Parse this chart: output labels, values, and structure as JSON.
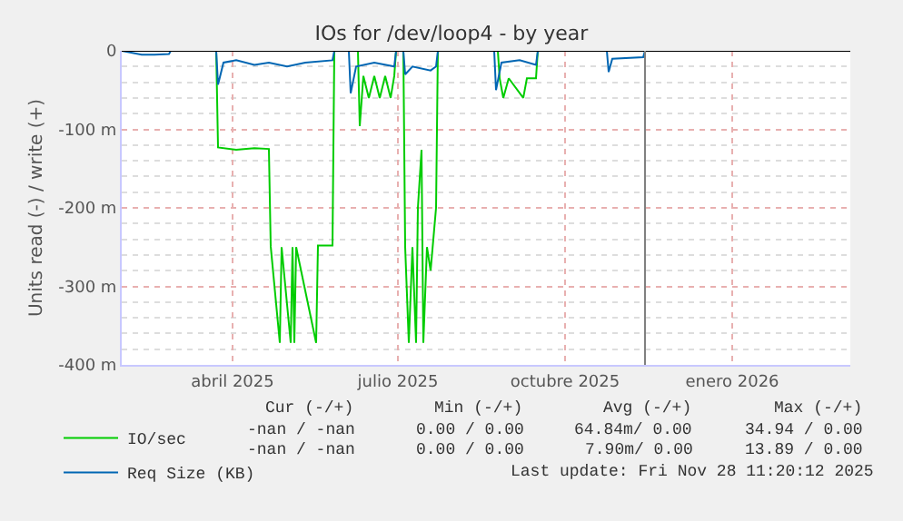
{
  "chart_data": {
    "type": "line",
    "title": "IOs for /dev/loop4 - by year",
    "ylabel": "Units read (-) / write (+)",
    "series": [
      {
        "name": "IO/sec",
        "color": "#00cc00",
        "x": [
          "2025-02-13",
          "2025-04-06",
          "2025-04-07",
          "2025-04-17",
          "2025-04-27",
          "2025-05-05",
          "2025-05-06",
          "2025-05-11",
          "2025-05-12",
          "2025-05-17",
          "2025-05-18",
          "2025-05-19",
          "2025-05-20",
          "2025-05-31",
          "2025-06-01",
          "2025-06-09",
          "2025-06-10",
          "2025-06-23",
          "2025-06-24",
          "2025-06-26",
          "2025-06-29",
          "2025-07-02",
          "2025-07-05",
          "2025-07-08",
          "2025-07-11",
          "2025-07-13",
          "2025-07-14",
          "2025-07-18",
          "2025-07-19",
          "2025-07-21",
          "2025-07-23",
          "2025-07-25",
          "2025-07-26",
          "2025-07-28",
          "2025-07-29",
          "2025-07-31",
          "2025-08-02",
          "2025-08-05",
          "2025-08-06",
          "2025-09-08",
          "2025-09-09",
          "2025-09-11",
          "2025-09-14",
          "2025-09-22",
          "2025-09-24",
          "2025-09-29",
          "2025-09-30",
          "2025-11-28"
        ],
        "values": [
          0,
          0,
          -123,
          -126,
          -124,
          -125,
          -249,
          -372,
          -250,
          -372,
          -250,
          -372,
          -250,
          -372,
          -248,
          -248,
          0,
          0,
          -96,
          -32,
          -60,
          -32,
          -60,
          -32,
          -60,
          -32,
          0,
          0,
          -250,
          -372,
          -250,
          -372,
          -200,
          -126,
          -372,
          -250,
          -280,
          -200,
          0,
          0,
          -35,
          -60,
          -35,
          -60,
          -35,
          -35,
          0,
          0
        ]
      },
      {
        "name": "Req Size (KB)",
        "color": "#0066b3",
        "x": [
          "2025-02-13",
          "2025-02-24",
          "2025-03-03",
          "2025-03-11",
          "2025-03-12",
          "2025-04-06",
          "2025-04-07",
          "2025-04-10",
          "2025-04-17",
          "2025-04-27",
          "2025-05-05",
          "2025-05-15",
          "2025-05-25",
          "2025-06-09",
          "2025-06-10",
          "2025-06-18",
          "2025-06-19",
          "2025-06-22",
          "2025-07-02",
          "2025-07-13",
          "2025-07-14",
          "2025-07-18",
          "2025-07-19",
          "2025-07-23",
          "2025-08-02",
          "2025-08-05",
          "2025-08-06",
          "2025-09-06",
          "2025-09-07",
          "2025-09-10",
          "2025-09-20",
          "2025-09-29",
          "2025-09-30",
          "2025-11-07",
          "2025-11-08",
          "2025-11-10",
          "2025-11-27",
          "2025-11-28"
        ],
        "values": [
          0,
          -5,
          -5,
          -4,
          0,
          0,
          -43,
          -15,
          -12,
          -18,
          -15,
          -20,
          -15,
          -12,
          0,
          0,
          -54,
          -20,
          -15,
          -20,
          0,
          0,
          -30,
          -20,
          -25,
          -20,
          0,
          0,
          -50,
          -15,
          -12,
          -18,
          0,
          0,
          -27,
          -10,
          -8,
          0
        ]
      }
    ],
    "xlim": [
      "2025-02-13",
      "2026-03-21"
    ],
    "xticks": [
      {
        "value": "2025-04-15",
        "label": "abril 2025"
      },
      {
        "value": "2025-07-15",
        "label": "julio 2025"
      },
      {
        "value": "2025-10-15",
        "label": "octubre 2025"
      },
      {
        "value": "2026-01-15",
        "label": "enero 2026"
      }
    ],
    "ylim": [
      -400,
      0
    ],
    "yticks": [
      {
        "value": 0,
        "label": "0"
      },
      {
        "value": -100,
        "label": "-100 m"
      },
      {
        "value": -200,
        "label": "-200 m"
      },
      {
        "value": -300,
        "label": "-300 m"
      },
      {
        "value": -400,
        "label": "-400 m"
      }
    ],
    "ref_lines": [
      {
        "axis": "y",
        "value": 0,
        "color": "#000000"
      },
      {
        "axis": "x",
        "value": "2025-11-28",
        "color": "#808080"
      }
    ],
    "grid": true,
    "legend": "bottom left",
    "annotations": [
      "Cur (-/+)",
      "Min (-/+)",
      "Avg (-/+)",
      "Max (-/+)",
      "-nan / -nan",
      "0.00 / 0.00",
      "64.84m/ 0.00",
      "34.94 / 0.00",
      "-nan / -nan",
      "0.00 / 0.00",
      "7.90m/ 0.00",
      "13.89 / 0.00",
      "Last update: Fri Nov 28 11:20:12 2025"
    ]
  }
}
